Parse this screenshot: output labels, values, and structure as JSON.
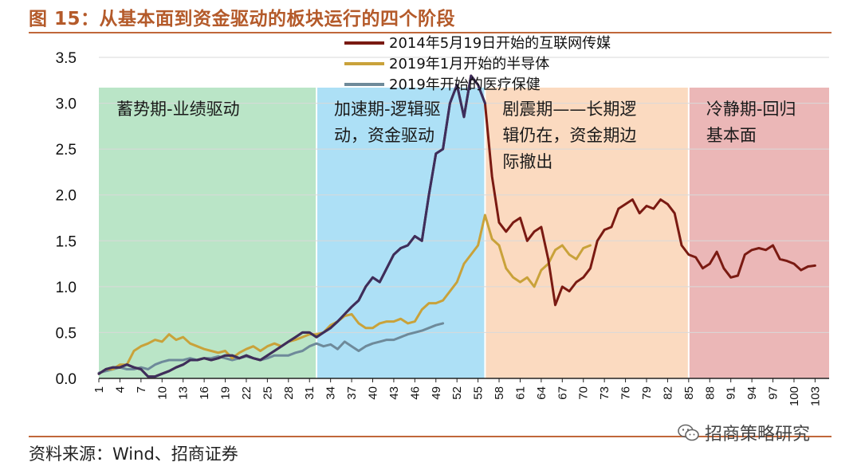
{
  "figure": {
    "title": "图 15：从基本面到资金驱动的板块运行的四个阶段",
    "source": "资料来源：Wind、招商证券",
    "watermark": "招商策略研究",
    "watermark_icon": "wechat-icon"
  },
  "colors": {
    "accent": "#c0673a",
    "series_2014": "#7a1a12",
    "series_2019_semis": "#c9a23a",
    "series_2019_health": "#6e8a9a",
    "phase_green": "#b6e4c4",
    "phase_blue": "#a9def5",
    "phase_orange": "#fbd8bd",
    "phase_red": "#eab3b3"
  },
  "chart_data": {
    "type": "line",
    "title": "",
    "xlabel": "",
    "ylabel": "",
    "ylim": [
      0,
      3.5
    ],
    "yticks": [
      0.0,
      0.5,
      1.0,
      1.5,
      2.0,
      2.5,
      3.0,
      3.5
    ],
    "ytick_labels": [
      "0.0",
      "0.5",
      "1.0",
      "1.5",
      "2.0",
      "2.5",
      "3.0",
      "3.5"
    ],
    "xlim": [
      1,
      105
    ],
    "xticks": [
      1,
      4,
      7,
      10,
      13,
      16,
      19,
      22,
      25,
      28,
      31,
      34,
      37,
      40,
      43,
      46,
      49,
      52,
      55,
      58,
      61,
      64,
      67,
      70,
      73,
      76,
      79,
      82,
      85,
      88,
      91,
      94,
      97,
      100,
      103
    ],
    "grid": true,
    "legend": "top-center",
    "phases": [
      {
        "label_lines": [
          "蓄势期-业绩驱动"
        ],
        "x_start": 1,
        "x_end": 32
      },
      {
        "label_lines": [
          "加速期-逻辑驱",
          "动，资金驱动"
        ],
        "x_start": 32,
        "x_end": 56
      },
      {
        "label_lines": [
          "剧震期——长期逻",
          "辑仍在，资金期边",
          "际撤出"
        ],
        "x_start": 56,
        "x_end": 85
      },
      {
        "label_lines": [
          "冷静期-回归",
          "基本面"
        ],
        "x_start": 85,
        "x_end": 105
      }
    ],
    "series": [
      {
        "name": "2014年5月19日开始的互联网传媒",
        "x_start": 1,
        "values": [
          0.05,
          0.1,
          0.12,
          0.12,
          0.15,
          0.12,
          0.1,
          0.02,
          0.02,
          0.05,
          0.08,
          0.12,
          0.15,
          0.2,
          0.2,
          0.22,
          0.2,
          0.22,
          0.25,
          0.25,
          0.22,
          0.25,
          0.22,
          0.2,
          0.25,
          0.3,
          0.35,
          0.4,
          0.45,
          0.5,
          0.5,
          0.45,
          0.5,
          0.55,
          0.62,
          0.7,
          0.78,
          0.85,
          1.0,
          1.1,
          1.05,
          1.2,
          1.35,
          1.42,
          1.45,
          1.55,
          1.5,
          2.0,
          2.45,
          2.5,
          3.0,
          3.2,
          2.85,
          3.3,
          3.2,
          3.0,
          2.2,
          1.7,
          1.6,
          1.7,
          1.75,
          1.5,
          1.6,
          1.65,
          1.3,
          0.8,
          1.0,
          0.95,
          1.05,
          1.1,
          1.2,
          1.5,
          1.62,
          1.65,
          1.85,
          1.9,
          1.95,
          1.8,
          1.88,
          1.85,
          1.95,
          1.9,
          1.8,
          1.45,
          1.35,
          1.32,
          1.2,
          1.25,
          1.38,
          1.2,
          1.1,
          1.12,
          1.35,
          1.4,
          1.42,
          1.4,
          1.45,
          1.3,
          1.28,
          1.25,
          1.18,
          1.22,
          1.23
        ]
      },
      {
        "name": "2019年1月开始的半导体",
        "x_start": 1,
        "values": [
          0.05,
          0.1,
          0.1,
          0.15,
          0.15,
          0.3,
          0.35,
          0.38,
          0.42,
          0.4,
          0.48,
          0.42,
          0.45,
          0.38,
          0.35,
          0.32,
          0.3,
          0.28,
          0.3,
          0.22,
          0.28,
          0.32,
          0.35,
          0.3,
          0.35,
          0.38,
          0.35,
          0.4,
          0.42,
          0.45,
          0.48,
          0.48,
          0.5,
          0.58,
          0.62,
          0.68,
          0.7,
          0.6,
          0.55,
          0.55,
          0.6,
          0.62,
          0.62,
          0.65,
          0.6,
          0.62,
          0.75,
          0.82,
          0.82,
          0.85,
          0.95,
          1.05,
          1.25,
          1.35,
          1.45,
          1.78,
          1.52,
          1.45,
          1.2,
          1.1,
          1.05,
          1.1,
          1.0,
          1.18,
          1.25,
          1.4,
          1.45,
          1.35,
          1.3,
          1.42,
          1.45
        ]
      },
      {
        "name": "2019年开始的医疗保健",
        "x_start": 1,
        "values": [
          0.06,
          0.08,
          0.1,
          0.12,
          0.1,
          0.1,
          0.12,
          0.1,
          0.15,
          0.18,
          0.2,
          0.2,
          0.2,
          0.22,
          0.2,
          0.22,
          0.22,
          0.24,
          0.22,
          0.2,
          0.22,
          0.24,
          0.22,
          0.2,
          0.22,
          0.25,
          0.25,
          0.25,
          0.28,
          0.3,
          0.35,
          0.38,
          0.35,
          0.37,
          0.32,
          0.4,
          0.35,
          0.3,
          0.35,
          0.38,
          0.4,
          0.42,
          0.42,
          0.45,
          0.48,
          0.5,
          0.52,
          0.55,
          0.58,
          0.6
        ]
      }
    ]
  }
}
